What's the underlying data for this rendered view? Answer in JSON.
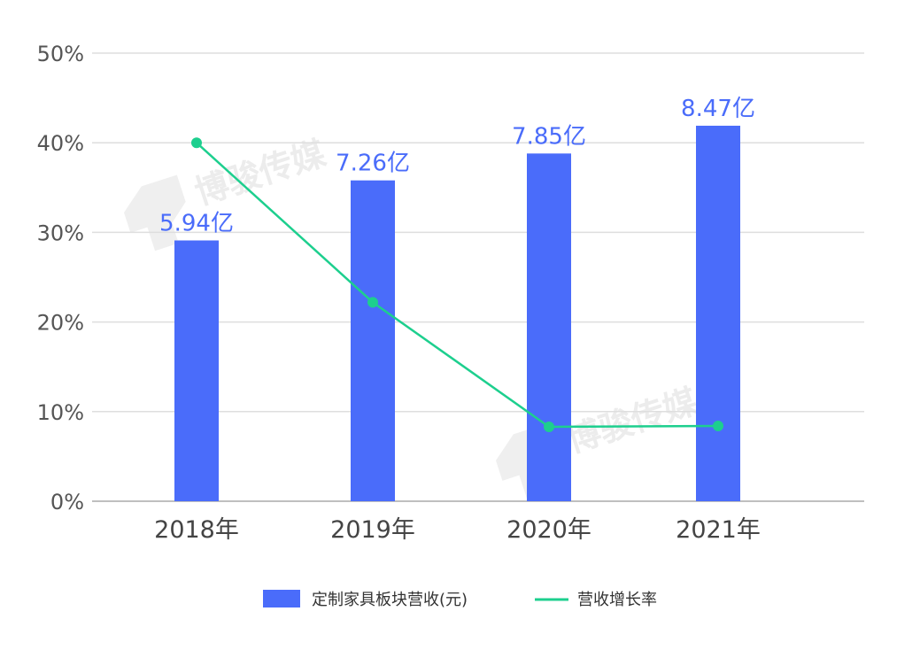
{
  "chart_data": {
    "type": "bar+line",
    "categories": [
      "2018年",
      "2019年",
      "2020年",
      "2021年"
    ],
    "series": [
      {
        "name": "定制家具板块营收(元)",
        "kind": "bar",
        "values": [
          29.1,
          35.8,
          38.8,
          41.9
        ],
        "labels": [
          "5.94亿",
          "7.26亿",
          "7.85亿",
          "8.47亿"
        ],
        "color": "#4a6cfa"
      },
      {
        "name": "营收增长率",
        "kind": "line",
        "values": [
          40.0,
          22.2,
          8.3,
          8.4
        ],
        "color": "#1dcf8e"
      }
    ],
    "yticks": [
      "0%",
      "10%",
      "20%",
      "30%",
      "40%",
      "50%"
    ],
    "ylim": [
      0,
      50
    ],
    "grid": true,
    "legend_position": "bottom-center",
    "label_color": "#4a6cfa"
  },
  "watermark": {
    "text": "博骏传媒"
  }
}
